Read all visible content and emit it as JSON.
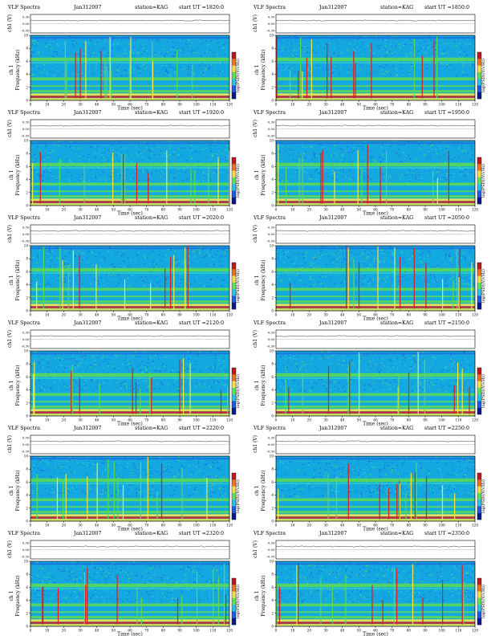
{
  "figure": {
    "colors": {
      "spectrogram_base": "#14a8e0",
      "noise_low": "#1e6fe0",
      "noise_mid": "#2fd0c8",
      "band_green": "#5ad85a",
      "band_yellow": "#f2e84a",
      "band_red": "#d81e1e",
      "colorbar": [
        "#0a1a8c",
        "#1e5af0",
        "#20c8e8",
        "#5ae05a",
        "#f0e040",
        "#f07020",
        "#c8141e"
      ]
    }
  },
  "chart_data": [
    {
      "type": "heatmap",
      "panel_title": "VLF Spectra",
      "date": "Jan312007",
      "station": "station=KAG",
      "start_ut": "start  UT =1820:0",
      "xlabel": "Time (sec)",
      "ylabel": "Frequency (kHz)",
      "ch_label": "ch 1",
      "ch1_label": "ch1 (V)",
      "colorbar_label": "log(PSD)(V/√Hz)",
      "xlim": [
        0,
        120
      ],
      "ylim": [
        0,
        10
      ],
      "xticks": [
        0,
        10,
        20,
        30,
        40,
        50,
        60,
        70,
        80,
        90,
        100,
        110,
        120
      ],
      "yticks": [
        0,
        2,
        4,
        6,
        8,
        10
      ],
      "ch1_yticks": [
        "0.30",
        "0.00",
        "-0.30"
      ]
    },
    {
      "type": "heatmap",
      "panel_title": "VLF Spectra",
      "date": "Jan312007",
      "station": "station=KAG",
      "start_ut": "start  UT =1850:0",
      "xlabel": "Time (sec)",
      "ylabel": "Frequency (kHz)",
      "ch_label": "ch 1",
      "ch1_label": "ch1 (V)",
      "colorbar_label": "log(PSD)(V/√Hz)",
      "xlim": [
        0,
        120
      ],
      "ylim": [
        0,
        10
      ],
      "xticks": [
        0,
        10,
        20,
        30,
        40,
        50,
        60,
        70,
        80,
        90,
        100,
        110,
        120
      ],
      "yticks": [
        0,
        2,
        4,
        6,
        8,
        10
      ],
      "ch1_yticks": [
        "0.30",
        "0.00",
        "-0.30"
      ]
    },
    {
      "type": "heatmap",
      "panel_title": "VLF Spectra",
      "date": "Jan312007",
      "station": "station=KAG",
      "start_ut": "start  UT =1920:0",
      "xlabel": "Time (sec)",
      "ylabel": "Frequency (kHz)",
      "ch_label": "ch 1",
      "ch1_label": "ch1 (V)",
      "colorbar_label": "log(PSD)(V/√Hz)",
      "xlim": [
        0,
        120
      ],
      "ylim": [
        0,
        10
      ],
      "xticks": [
        0,
        10,
        20,
        30,
        40,
        50,
        60,
        70,
        80,
        90,
        100,
        110,
        120
      ],
      "yticks": [
        0,
        2,
        4,
        6,
        8,
        10
      ],
      "ch1_yticks": [
        "0.30",
        "0.00",
        "-0.30"
      ]
    },
    {
      "type": "heatmap",
      "panel_title": "VLF Spectra",
      "date": "Jan312007",
      "station": "station=KAG",
      "start_ut": "start  UT =1950:0",
      "xlabel": "Time (sec)",
      "ylabel": "Frequency (kHz)",
      "ch_label": "ch 1",
      "ch1_label": "ch1 (V)",
      "colorbar_label": "log(PSD)(V/√Hz)",
      "xlim": [
        0,
        120
      ],
      "ylim": [
        0,
        10
      ],
      "xticks": [
        0,
        10,
        20,
        30,
        40,
        50,
        60,
        70,
        80,
        90,
        100,
        110,
        120
      ],
      "yticks": [
        0,
        2,
        4,
        6,
        8,
        10
      ],
      "ch1_yticks": [
        "0.30",
        "0.00",
        "-0.30"
      ]
    },
    {
      "type": "heatmap",
      "panel_title": "VLF Spectra",
      "date": "Jan312007",
      "station": "station=KAG",
      "start_ut": "start  UT =2020:0",
      "xlabel": "Time (sec)",
      "ylabel": "Frequency (kHz)",
      "ch_label": "ch 1",
      "ch1_label": "ch1 (V)",
      "colorbar_label": "log(PSD)(V/√Hz)",
      "xlim": [
        0,
        120
      ],
      "ylim": [
        0,
        10
      ],
      "xticks": [
        0,
        10,
        20,
        30,
        40,
        50,
        60,
        70,
        80,
        90,
        100,
        110,
        120
      ],
      "yticks": [
        0,
        2,
        4,
        6,
        8,
        10
      ],
      "ch1_yticks": [
        "0.30",
        "0.00",
        "-0.30"
      ]
    },
    {
      "type": "heatmap",
      "panel_title": "VLF Spectra",
      "date": "Jan312007",
      "station": "station=KAG",
      "start_ut": "start  UT =2050:0",
      "xlabel": "Time (sec)",
      "ylabel": "Frequency (kHz)",
      "ch_label": "ch 1",
      "ch1_label": "ch1 (V)",
      "colorbar_label": "log(PSD)(V/√Hz)",
      "xlim": [
        0,
        120
      ],
      "ylim": [
        0,
        10
      ],
      "xticks": [
        0,
        10,
        20,
        30,
        40,
        50,
        60,
        70,
        80,
        90,
        100,
        110,
        120
      ],
      "yticks": [
        0,
        2,
        4,
        6,
        8,
        10
      ],
      "ch1_yticks": [
        "0.30",
        "0.00",
        "-0.30"
      ]
    },
    {
      "type": "heatmap",
      "panel_title": "VLF Spectra",
      "date": "Jan312007",
      "station": "station=KAG",
      "start_ut": "start  UT =2120:0",
      "xlabel": "Time (sec)",
      "ylabel": "Frequency (kHz)",
      "ch_label": "ch 1",
      "ch1_label": "ch1 (V)",
      "colorbar_label": "log(PSD)(V/√Hz)",
      "xlim": [
        0,
        120
      ],
      "ylim": [
        0,
        10
      ],
      "xticks": [
        0,
        10,
        20,
        30,
        40,
        50,
        60,
        70,
        80,
        90,
        100,
        110,
        120
      ],
      "yticks": [
        0,
        2,
        4,
        6,
        8,
        10
      ],
      "ch1_yticks": [
        "0.30",
        "0.00",
        "-0.30"
      ]
    },
    {
      "type": "heatmap",
      "panel_title": "VLF Spectra",
      "date": "Jan312007",
      "station": "station=KAG",
      "start_ut": "start  UT =2150:0",
      "xlabel": "Time (sec)",
      "ylabel": "Frequency (kHz)",
      "ch_label": "ch 1",
      "ch1_label": "ch1 (V)",
      "colorbar_label": "log(PSD)(V/√Hz)",
      "xlim": [
        0,
        120
      ],
      "ylim": [
        0,
        10
      ],
      "xticks": [
        0,
        10,
        20,
        30,
        40,
        50,
        60,
        70,
        80,
        90,
        100,
        110,
        120
      ],
      "yticks": [
        0,
        2,
        4,
        6,
        8,
        10
      ],
      "ch1_yticks": [
        "0.30",
        "0.00",
        "-0.30"
      ]
    },
    {
      "type": "heatmap",
      "panel_title": "VLF Spectra",
      "date": "Jan312007",
      "station": "station=KAG",
      "start_ut": "start  UT =2220:0",
      "xlabel": "Time (sec)",
      "ylabel": "Frequency (kHz)",
      "ch_label": "ch 1",
      "ch1_label": "ch1 (V)",
      "colorbar_label": "log(PSD)(V/√Hz)",
      "xlim": [
        0,
        120
      ],
      "ylim": [
        0,
        10
      ],
      "xticks": [
        0,
        10,
        20,
        30,
        40,
        50,
        60,
        70,
        80,
        90,
        100,
        110,
        120
      ],
      "yticks": [
        0,
        2,
        4,
        6,
        8,
        10
      ],
      "ch1_yticks": [
        "0.30",
        "0.00",
        "-0.30"
      ]
    },
    {
      "type": "heatmap",
      "panel_title": "VLF Spectra",
      "date": "Jan312007",
      "station": "station=KAG",
      "start_ut": "start  UT =2250:0",
      "xlabel": "Time (sec)",
      "ylabel": "Frequency (kHz)",
      "ch_label": "ch 1",
      "ch1_label": "ch1 (V)",
      "colorbar_label": "log(PSD)(V/√Hz)",
      "xlim": [
        0,
        120
      ],
      "ylim": [
        0,
        10
      ],
      "xticks": [
        0,
        10,
        20,
        30,
        40,
        50,
        60,
        70,
        80,
        90,
        100,
        110,
        120
      ],
      "yticks": [
        0,
        2,
        4,
        6,
        8,
        10
      ],
      "ch1_yticks": [
        "0.30",
        "0.00",
        "-0.30"
      ]
    },
    {
      "type": "heatmap",
      "panel_title": "VLF Spectra",
      "date": "Jan312007",
      "station": "station=KAG",
      "start_ut": "start  UT =2320:0",
      "xlabel": "Time (sec)",
      "ylabel": "Frequency (kHz)",
      "ch_label": "ch 1",
      "ch1_label": "ch1 (V)",
      "colorbar_label": "log(PSD)(V/√Hz)",
      "xlim": [
        0,
        120
      ],
      "ylim": [
        0,
        10
      ],
      "xticks": [
        0,
        10,
        20,
        30,
        40,
        50,
        60,
        70,
        80,
        90,
        100,
        110,
        120
      ],
      "yticks": [
        0,
        2,
        4,
        6,
        8,
        10
      ],
      "ch1_yticks": [
        "0.30",
        "0.00",
        "-0.30"
      ]
    },
    {
      "type": "heatmap",
      "panel_title": "VLF Spectra",
      "date": "Jan312007",
      "station": "station=KAG",
      "start_ut": "start  UT =2350:0",
      "xlabel": "Time (sec)",
      "ylabel": "Frequency (kHz)",
      "ch_label": "ch 1",
      "ch1_label": "ch1 (V)",
      "colorbar_label": "log(PSD)(V/√Hz)",
      "xlim": [
        0,
        120
      ],
      "ylim": [
        0,
        10
      ],
      "xticks": [
        0,
        10,
        20,
        30,
        40,
        50,
        60,
        70,
        80,
        90,
        100,
        110,
        120
      ],
      "yticks": [
        0,
        2,
        4,
        6,
        8,
        10
      ],
      "ch1_yticks": [
        "0.30",
        "0.00",
        "-0.30"
      ]
    }
  ]
}
